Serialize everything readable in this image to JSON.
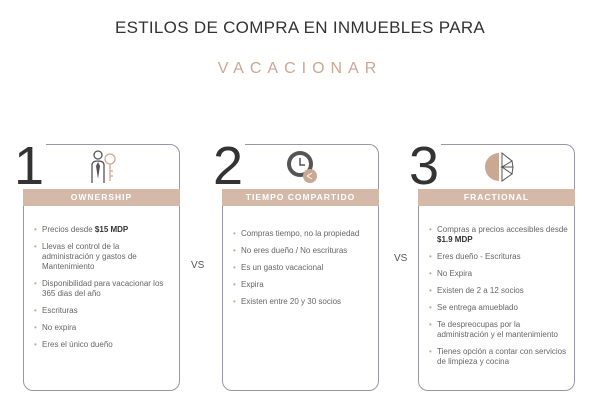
{
  "title": "ESTILOS DE COMPRA EN INMUEBLES PARA",
  "subtitle": "VACACIONAR",
  "vs": "VS",
  "accent": "#d4b9a9",
  "cards": [
    {
      "number": "1",
      "name": "OWNERSHIP",
      "icon": "person-key-icon",
      "items": [
        {
          "text": "Precios desde ",
          "bold": "$15 MDP"
        },
        {
          "text": "Llevas el control de la administración y gastos de Mantenimiento"
        },
        {
          "text": "Disponibilidad para vacacionar los 365 dias del año"
        },
        {
          "text": "Escrituras"
        },
        {
          "text": "No expira"
        },
        {
          "text": "Eres el único dueño"
        }
      ]
    },
    {
      "number": "2",
      "name": "TIEMPO COMPARTIDO",
      "icon": "clock-share-icon",
      "items": [
        {
          "text": "Compras tiempo, no la propiedad"
        },
        {
          "text": "No eres dueño / No escrituras"
        },
        {
          "text": "Es un gasto vacacional"
        },
        {
          "text": "Expira"
        },
        {
          "text": "Existen entre 20 y 30 socios"
        }
      ]
    },
    {
      "number": "3",
      "name": "FRACTIONAL",
      "icon": "pie-fraction-icon",
      "items": [
        {
          "text": "Compras a precios accesibles desde ",
          "bold": "$1.9 MDP"
        },
        {
          "text": "Eres dueño - Escrituras"
        },
        {
          "text": "No Expira"
        },
        {
          "text": "Existen de 2 a 12 socios"
        },
        {
          "text": "Se entrega amueblado"
        },
        {
          "text": "Te despreocupas por la administración y el mantenimiento"
        },
        {
          "text": "Tienes opción a contar con servicios de limpieza y cocina"
        }
      ]
    }
  ]
}
